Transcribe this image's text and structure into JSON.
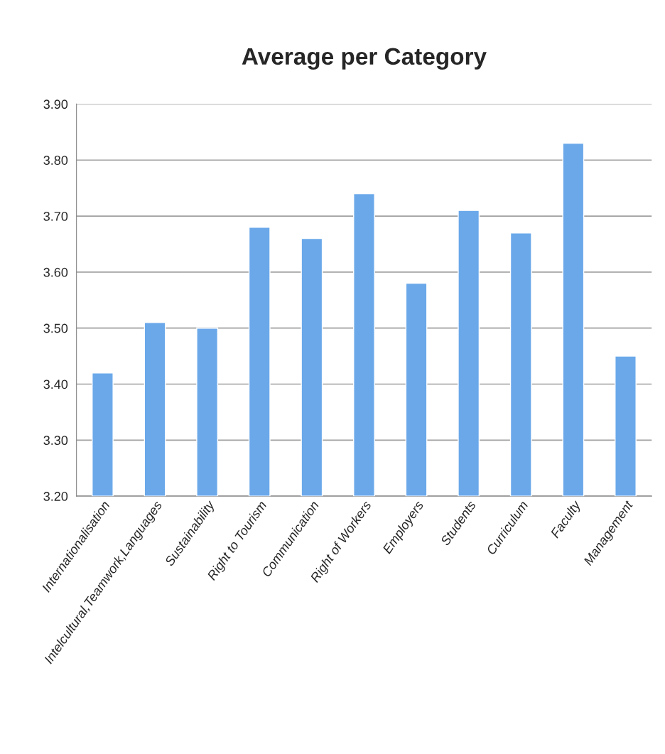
{
  "chart_data": {
    "type": "bar",
    "title": "Average per Category",
    "categories": [
      "Internationalisation",
      "Intelcultural,Teamwork,Languages",
      "Sustainability",
      "Right to Tourism",
      "Communication",
      "Right of Workers",
      "Employers",
      "Students",
      "Curriculum",
      "Faculty",
      "Management"
    ],
    "values": [
      3.42,
      3.51,
      3.5,
      3.68,
      3.66,
      3.74,
      3.58,
      3.71,
      3.67,
      3.83,
      3.45
    ],
    "color": "#6aa8ea",
    "ylim": [
      3.2,
      3.9
    ],
    "yticks": [
      {
        "value": 3.2,
        "label": "3.20"
      },
      {
        "value": 3.3,
        "label": "3.30"
      },
      {
        "value": 3.4,
        "label": "3.40"
      },
      {
        "value": 3.5,
        "label": "3.50"
      },
      {
        "value": 3.6,
        "label": "3.60"
      },
      {
        "value": 3.7,
        "label": "3.70"
      },
      {
        "value": 3.8,
        "label": "3.80"
      },
      {
        "value": 3.9,
        "label": "3.90"
      }
    ],
    "grid": "y",
    "legend": false
  }
}
